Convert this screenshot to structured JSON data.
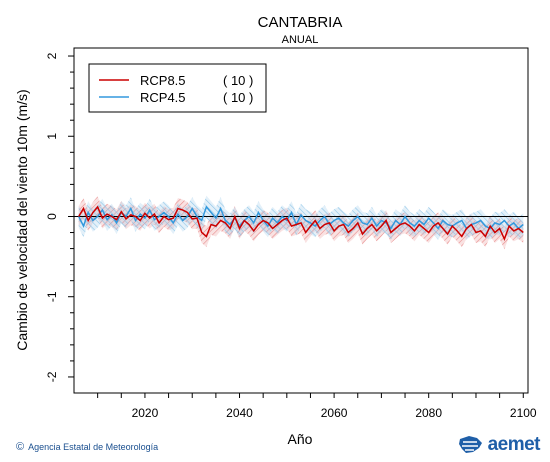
{
  "chart_data": {
    "type": "line",
    "title": "CANTABRIA",
    "subtitle": "ANUAL",
    "xlabel": "Año",
    "ylabel": "Cambio de velocidad del viento 10m (m/s)",
    "xlim": [
      2005,
      2101
    ],
    "ylim": [
      -2.2,
      2.1
    ],
    "xticks": [
      2020,
      2040,
      2060,
      2080,
      2100
    ],
    "yticks": [
      2,
      1,
      0,
      -1,
      -2
    ],
    "reference_line": 0,
    "legend_position": "top-left",
    "series": [
      {
        "name": "RCP8.5",
        "count_label": "( 10 )",
        "color": "#cc0000",
        "band_color": "#e88a8a",
        "x_start": 2006,
        "values": [
          0.0,
          0.1,
          -0.05,
          0.05,
          0.12,
          -0.02,
          0.03,
          0.0,
          -0.04,
          0.06,
          -0.03,
          0.02,
          0.0,
          -0.05,
          0.04,
          -0.02,
          0.03,
          -0.08,
          0.0,
          -0.04,
          -0.02,
          0.1,
          0.08,
          0.05,
          -0.03,
          -0.02,
          -0.2,
          -0.25,
          -0.1,
          -0.12,
          -0.05,
          -0.08,
          -0.15,
          0.0,
          -0.15,
          -0.05,
          -0.1,
          -0.18,
          -0.1,
          -0.05,
          -0.08,
          -0.15,
          -0.1,
          -0.05,
          -0.02,
          -0.12,
          -0.1,
          -0.08,
          -0.2,
          -0.12,
          -0.05,
          -0.15,
          -0.1,
          -0.08,
          -0.18,
          -0.12,
          -0.1,
          -0.2,
          -0.15,
          -0.08,
          -0.22,
          -0.15,
          -0.1,
          -0.18,
          -0.12,
          -0.05,
          -0.2,
          -0.15,
          -0.1,
          -0.08,
          -0.12,
          -0.18,
          -0.1,
          -0.15,
          -0.2,
          -0.12,
          -0.08,
          -0.15,
          -0.22,
          -0.12,
          -0.18,
          -0.25,
          -0.15,
          -0.1,
          -0.2,
          -0.18,
          -0.25,
          -0.12,
          -0.2,
          -0.15,
          -0.28,
          -0.12,
          -0.18,
          -0.15,
          -0.2
        ],
        "band_halfwidth": 0.13
      },
      {
        "name": "RCP4.5",
        "count_label": "( 10 )",
        "color": "#3399dd",
        "band_color": "#8ec5e8",
        "x_start": 2006,
        "values": [
          0.0,
          -0.12,
          0.05,
          -0.05,
          0.0,
          0.08,
          -0.04,
          0.02,
          -0.08,
          0.05,
          0.0,
          0.1,
          -0.05,
          0.03,
          -0.02,
          0.08,
          -0.04,
          0.0,
          0.05,
          0.0,
          -0.08,
          0.03,
          -0.05,
          0.0,
          0.1,
          0.0,
          -0.05,
          0.12,
          0.05,
          -0.02,
          0.1,
          -0.05,
          -0.1,
          -0.02,
          -0.12,
          -0.05,
          0.0,
          -0.08,
          0.05,
          -0.05,
          -0.12,
          -0.02,
          -0.08,
          0.0,
          -0.05,
          0.05,
          -0.1,
          0.02,
          -0.05,
          -0.08,
          -0.12,
          -0.05,
          0.0,
          -0.1,
          -0.05,
          -0.02,
          -0.08,
          -0.12,
          -0.05,
          0.0,
          -0.08,
          -0.1,
          -0.02,
          -0.12,
          -0.05,
          -0.08,
          -0.15,
          -0.05,
          -0.1,
          0.0,
          -0.08,
          -0.12,
          -0.05,
          -0.1,
          -0.02,
          -0.08,
          -0.15,
          -0.05,
          -0.1,
          -0.12,
          -0.08,
          -0.05,
          -0.15,
          -0.1,
          -0.08,
          -0.05,
          -0.12,
          -0.15,
          -0.08,
          -0.1,
          -0.05,
          -0.12,
          -0.08,
          -0.15,
          -0.1
        ],
        "band_halfwidth": 0.14
      }
    ]
  },
  "footer": {
    "copyright_symbol": "©",
    "credit": "Agencia Estatal de Meteorología",
    "logo_text": "aemet",
    "logo_icon": "aemet-logo-icon"
  }
}
